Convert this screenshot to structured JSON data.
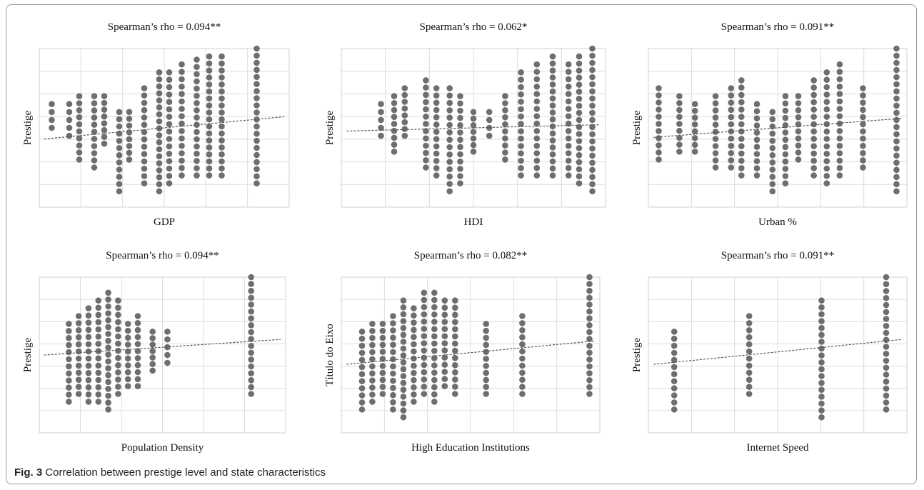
{
  "figure": {
    "caption_label": "Fig. 3",
    "caption_text": "Correlation between prestige level and state characteristics"
  },
  "colors": {
    "point": "#6e6e6e",
    "grid": "#dcdcdc",
    "trend": "#555555",
    "panel_border": "#d0d0d0"
  },
  "chart_data": [
    {
      "type": "scatter",
      "title": "Spearman’s rho = 0.094**",
      "xlabel": "GDP",
      "ylabel": "Prestige",
      "grid": true,
      "x_range": [
        0,
        10
      ],
      "y_range": [
        0,
        10
      ],
      "x_groups": [
        0.5,
        1.2,
        1.6,
        2.2,
        2.6,
        3.2,
        3.6,
        4.2,
        4.8,
        5.2,
        5.7,
        6.3,
        6.8,
        7.3,
        8.7
      ],
      "y_spans": [
        [
          5.0,
          6.5
        ],
        [
          4.5,
          6.5
        ],
        [
          3.0,
          7.0
        ],
        [
          2.5,
          7.0
        ],
        [
          4.0,
          7.0
        ],
        [
          1.0,
          6.0
        ],
        [
          3.0,
          6.0
        ],
        [
          1.5,
          7.5
        ],
        [
          1.0,
          8.5
        ],
        [
          1.5,
          8.5
        ],
        [
          2.0,
          9.0
        ],
        [
          2.0,
          9.3
        ],
        [
          2.0,
          9.5
        ],
        [
          2.0,
          9.5
        ],
        [
          1.5,
          10.0
        ]
      ],
      "trend": {
        "x": [
          0.2,
          9.8
        ],
        "y": [
          4.3,
          5.7
        ]
      }
    },
    {
      "type": "scatter",
      "title": "Spearman’s rho = 0.062*",
      "xlabel": "HDI",
      "ylabel": "Prestige",
      "grid": true,
      "x_range": [
        0,
        10
      ],
      "y_range": [
        0,
        10
      ],
      "x_groups": [
        1.5,
        2.0,
        2.4,
        3.2,
        3.6,
        4.1,
        4.5,
        5.0,
        5.6,
        6.2,
        6.8,
        7.4,
        8.0,
        8.6,
        9.0,
        9.5
      ],
      "y_spans": [
        [
          4.5,
          6.5
        ],
        [
          3.5,
          7.0
        ],
        [
          4.5,
          7.5
        ],
        [
          2.5,
          8.0
        ],
        [
          2.0,
          7.5
        ],
        [
          1.0,
          7.5
        ],
        [
          1.5,
          7.0
        ],
        [
          3.5,
          6.0
        ],
        [
          4.5,
          6.0
        ],
        [
          3.0,
          7.0
        ],
        [
          2.0,
          8.5
        ],
        [
          2.0,
          9.0
        ],
        [
          2.0,
          9.5
        ],
        [
          2.0,
          9.0
        ],
        [
          1.5,
          9.5
        ],
        [
          1.0,
          10.0
        ]
      ],
      "trend": {
        "x": [
          0.2,
          9.8
        ],
        "y": [
          4.8,
          5.2
        ]
      }
    },
    {
      "type": "scatter",
      "title": "Spearman’s rho = 0.091**",
      "xlabel": "Urban %",
      "ylabel": "Prestige",
      "grid": true,
      "x_range": [
        0,
        10
      ],
      "y_range": [
        0,
        10
      ],
      "x_groups": [
        0.4,
        1.2,
        1.8,
        2.6,
        3.2,
        3.6,
        4.2,
        4.8,
        5.3,
        5.8,
        6.4,
        6.9,
        7.4,
        8.3,
        9.6
      ],
      "y_spans": [
        [
          3.0,
          7.5
        ],
        [
          3.5,
          7.0
        ],
        [
          3.5,
          6.5
        ],
        [
          2.5,
          7.0
        ],
        [
          2.5,
          7.5
        ],
        [
          2.0,
          8.0
        ],
        [
          2.0,
          6.5
        ],
        [
          1.0,
          6.0
        ],
        [
          1.5,
          7.0
        ],
        [
          3.0,
          7.0
        ],
        [
          2.0,
          8.0
        ],
        [
          1.5,
          8.5
        ],
        [
          2.0,
          9.0
        ],
        [
          2.5,
          7.5
        ],
        [
          1.0,
          10.0
        ]
      ],
      "trend": {
        "x": [
          0.2,
          9.8
        ],
        "y": [
          4.4,
          5.6
        ]
      }
    },
    {
      "type": "scatter",
      "title": "Spearman’s rho = 0.094**",
      "xlabel": "Population Density",
      "ylabel": "Prestige",
      "grid": true,
      "x_range": [
        0,
        10
      ],
      "y_range": [
        0,
        10
      ],
      "x_groups": [
        1.2,
        1.6,
        2.0,
        2.4,
        2.8,
        3.2,
        3.6,
        4.0,
        4.6,
        5.2,
        8.6
      ],
      "y_spans": [
        [
          2.0,
          7.0
        ],
        [
          2.5,
          7.5
        ],
        [
          2.0,
          8.0
        ],
        [
          2.0,
          8.5
        ],
        [
          1.5,
          9.0
        ],
        [
          2.5,
          8.5
        ],
        [
          3.0,
          7.0
        ],
        [
          3.0,
          7.5
        ],
        [
          4.0,
          6.5
        ],
        [
          4.5,
          6.5
        ],
        [
          2.5,
          10.0
        ]
      ],
      "trend": {
        "x": [
          0.2,
          9.8
        ],
        "y": [
          5.0,
          6.0
        ]
      }
    },
    {
      "type": "scatter",
      "title": "Spearman’s rho = 0.082**",
      "xlabel": "High Education Institutions",
      "ylabel": "Título do Eixo",
      "grid": true,
      "x_range": [
        0,
        10
      ],
      "y_range": [
        0,
        10
      ],
      "x_groups": [
        0.8,
        1.2,
        1.6,
        2.0,
        2.4,
        2.8,
        3.2,
        3.6,
        4.0,
        4.4,
        5.6,
        7.0,
        9.6
      ],
      "y_spans": [
        [
          1.5,
          6.5
        ],
        [
          2.0,
          7.0
        ],
        [
          2.5,
          7.0
        ],
        [
          1.5,
          7.5
        ],
        [
          1.0,
          8.5
        ],
        [
          2.0,
          8.0
        ],
        [
          2.5,
          9.0
        ],
        [
          2.0,
          9.0
        ],
        [
          3.0,
          8.5
        ],
        [
          2.5,
          8.5
        ],
        [
          2.5,
          7.0
        ],
        [
          2.5,
          7.5
        ],
        [
          2.5,
          10.0
        ]
      ],
      "trend": {
        "x": [
          0.2,
          9.8
        ],
        "y": [
          4.4,
          5.9
        ]
      }
    },
    {
      "type": "scatter",
      "title": "Spearman’s rho = 0.091**",
      "xlabel": "Internet Speed",
      "ylabel": "Prestige",
      "grid": true,
      "x_range": [
        0,
        10
      ],
      "y_range": [
        0,
        10
      ],
      "x_groups": [
        1.0,
        3.9,
        6.7,
        9.2
      ],
      "y_spans": [
        [
          1.5,
          6.5
        ],
        [
          2.5,
          7.5
        ],
        [
          1.0,
          8.5
        ],
        [
          1.5,
          10.0
        ]
      ],
      "trend": {
        "x": [
          0.2,
          9.8
        ],
        "y": [
          4.4,
          6.0
        ]
      }
    }
  ]
}
